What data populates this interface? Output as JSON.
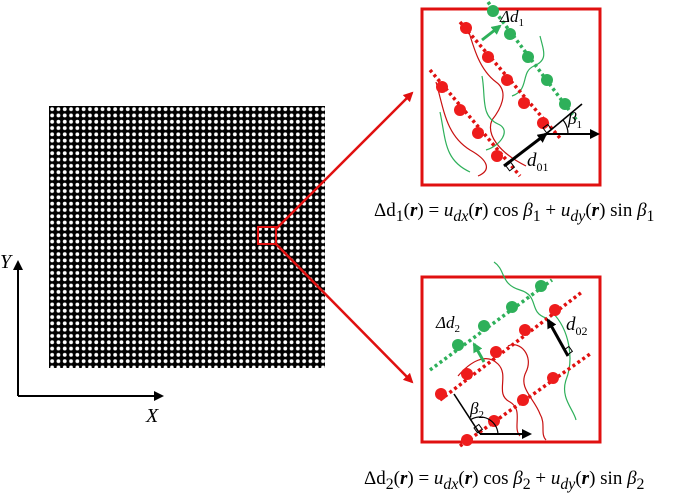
{
  "axes": {
    "y_label": "Y",
    "x_label": "X"
  },
  "panel1": {
    "delta_label_base": "Δd",
    "delta_label_sub": "1",
    "d_label_base": "d",
    "d_label_sub": "01",
    "angle_base": "β",
    "angle_sub": "1"
  },
  "panel2": {
    "delta_label_base": "Δd",
    "delta_label_sub": "2",
    "d_label_base": "d",
    "d_label_sub": "02",
    "angle_base": "β",
    "angle_sub": "2"
  },
  "equations": {
    "eq1": {
      "lhs": "Δd",
      "lhs_sub": "1",
      "r": "r",
      "u1": "u",
      "u1_sub": "dx",
      "func1": "cos",
      "beta1": "β",
      "beta1_sub": "1",
      "u2": "u",
      "u2_sub": "dy",
      "func2": "sin",
      "beta2": "β",
      "beta2_sub": "1"
    },
    "eq2": {
      "lhs": "Δd",
      "lhs_sub": "2",
      "r": "r",
      "u1": "u",
      "u1_sub": "dx",
      "func1": "cos",
      "beta1": "β",
      "beta1_sub": "2",
      "u2": "u",
      "u2_sub": "dy",
      "func2": "sin",
      "beta2": "β",
      "beta2_sub": "2"
    }
  },
  "colors": {
    "frame_red": "#e01010",
    "dot_red": "#ee1c1c",
    "dot_green": "#2eb05a",
    "lattice_bg": "#000000",
    "lattice_dot": "#ffffff"
  }
}
